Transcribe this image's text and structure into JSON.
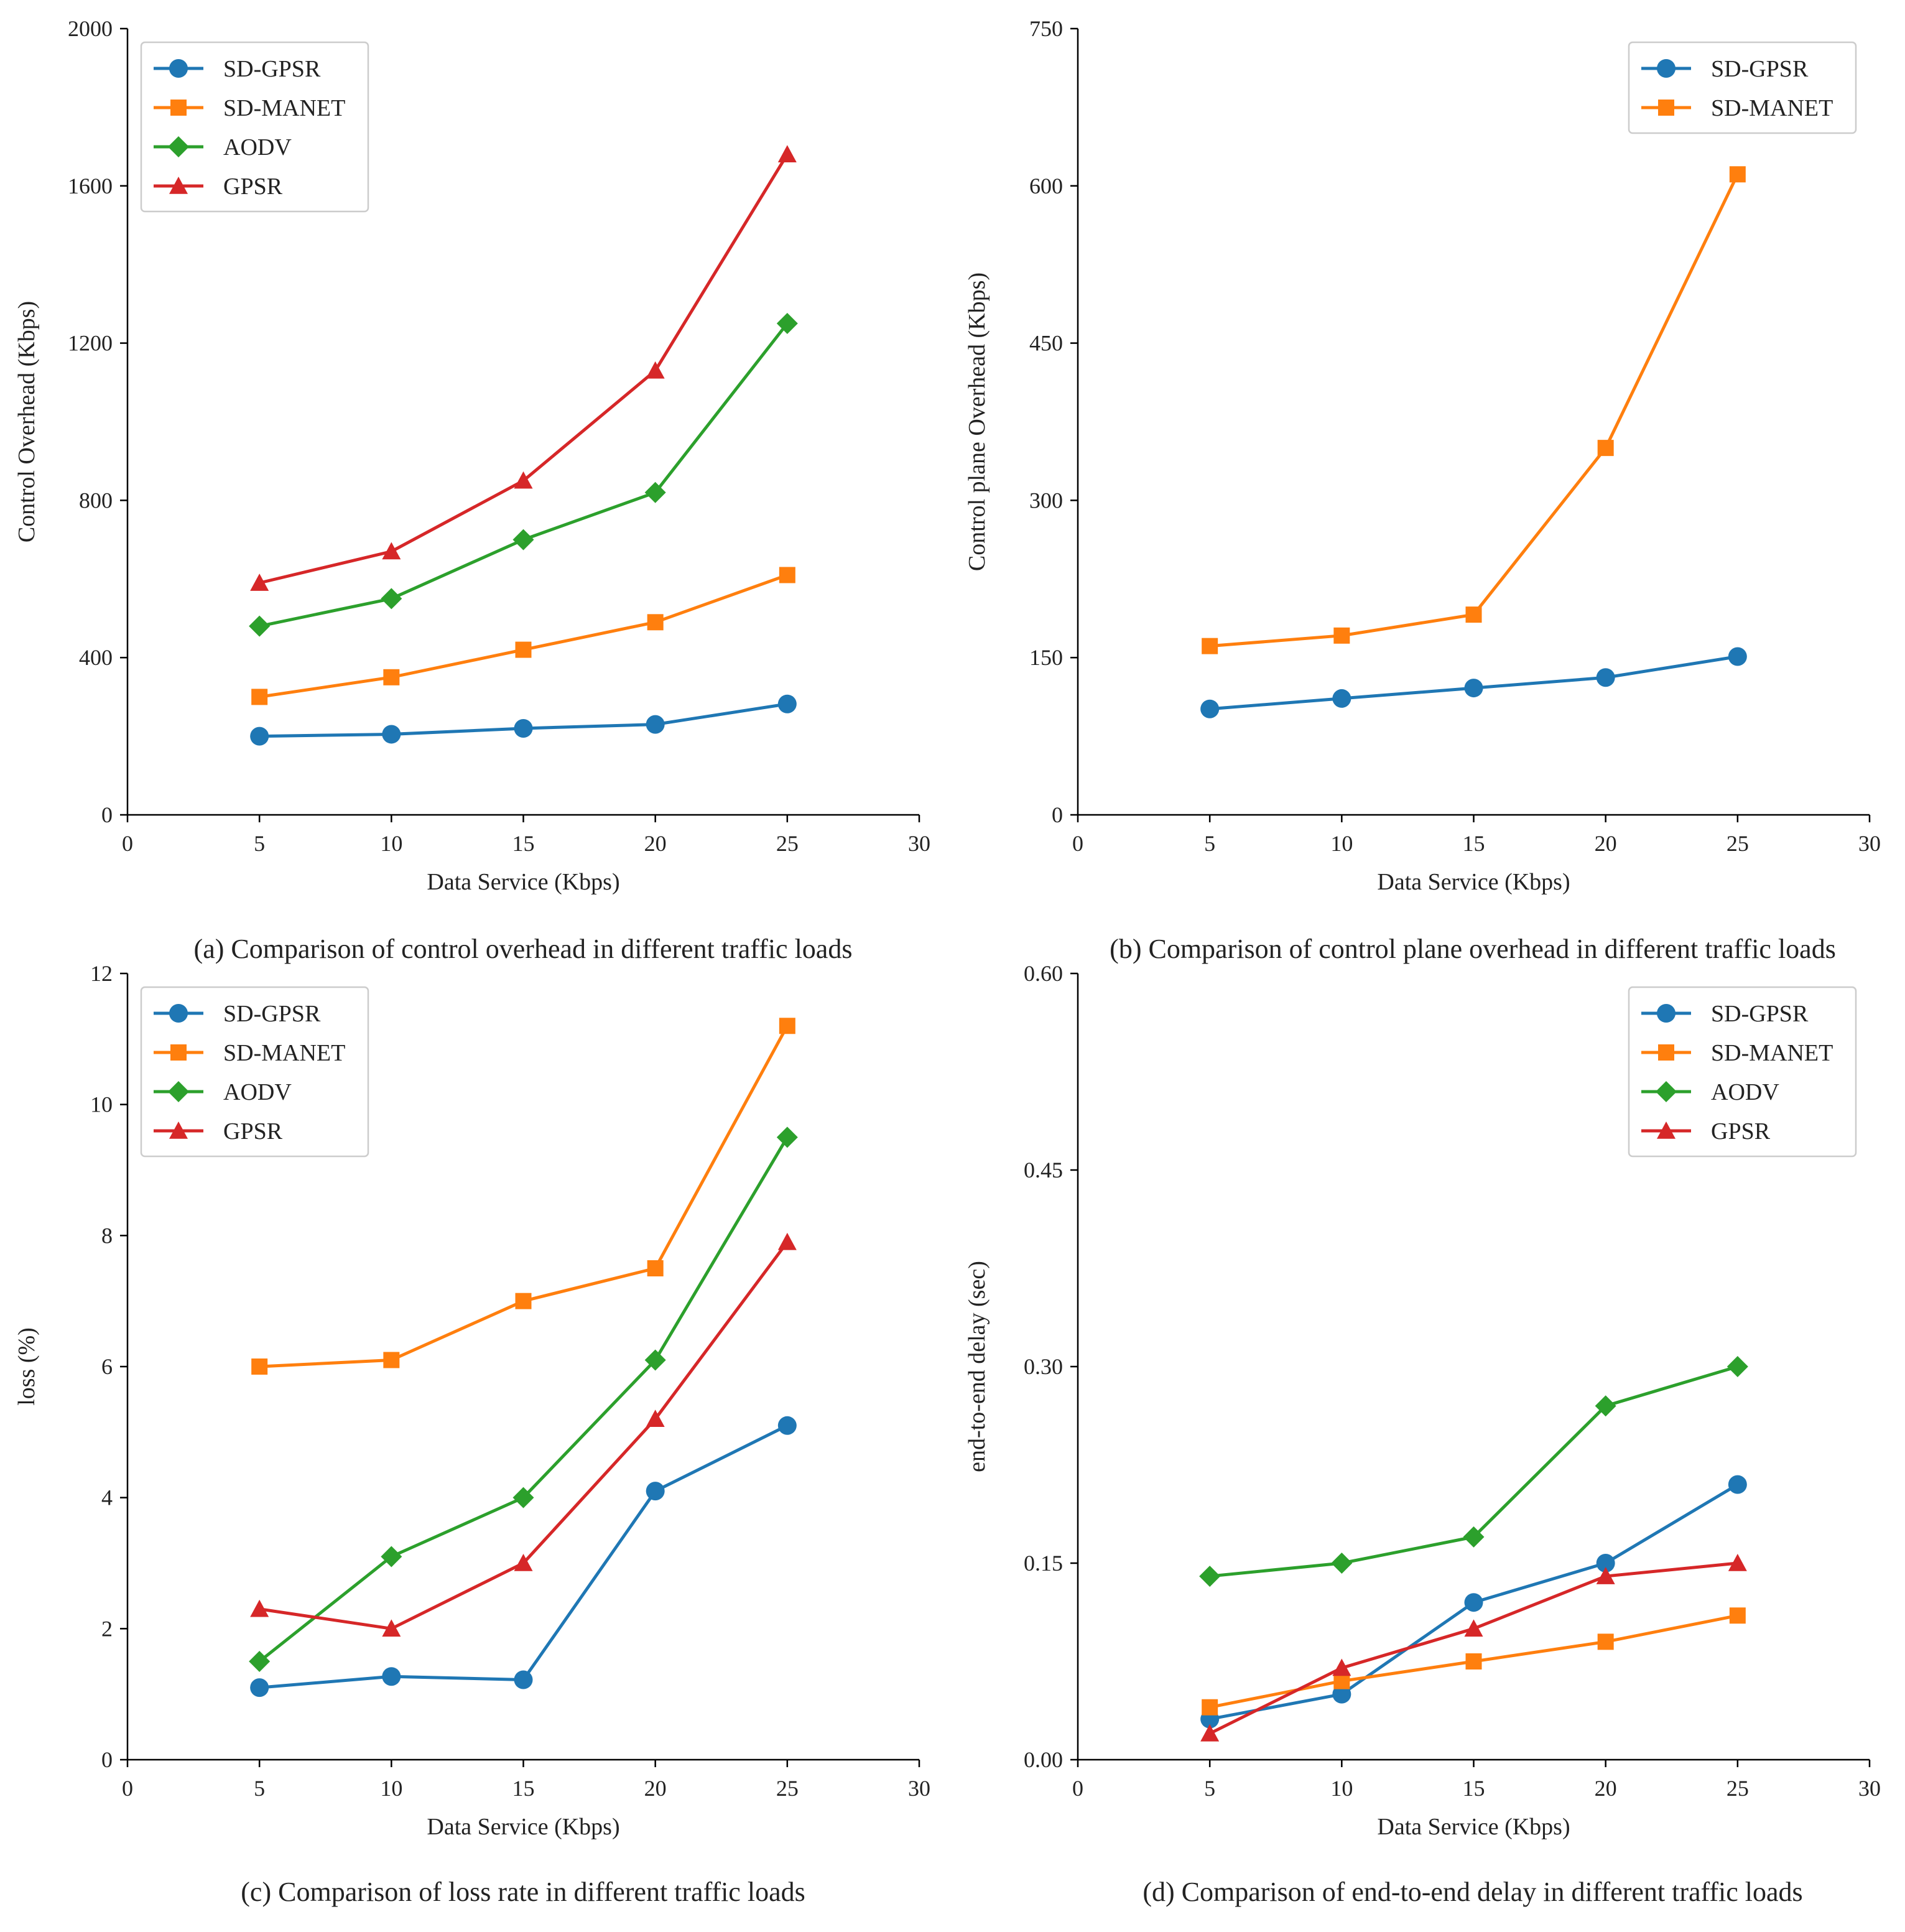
{
  "chart_data": [
    {
      "type": "line",
      "caption": "(a) Comparison of control overhead in different traffic loads",
      "xlabel": "Data Service (Kbps)",
      "ylabel": "Control Overhead (Kbps)",
      "xlim": [
        0,
        30
      ],
      "ylim": [
        0,
        2000
      ],
      "xticks": [
        0,
        5,
        10,
        15,
        20,
        25,
        30
      ],
      "xtick_labels": [
        "0",
        "5",
        "10",
        "15",
        "20",
        "25",
        "30"
      ],
      "yticks": [
        0,
        400,
        800,
        1200,
        1600,
        2000
      ],
      "ytick_labels": [
        "0",
        "400",
        "800",
        "1200",
        "1600",
        "2000"
      ],
      "grid": false,
      "legend": "top-left",
      "x": [
        5,
        10,
        15,
        20,
        25
      ],
      "series": [
        {
          "name": "SD-GPSR",
          "color": "#1f77b4",
          "marker": "circle",
          "values": [
            200,
            205,
            220,
            230,
            282
          ]
        },
        {
          "name": "SD-MANET",
          "color": "#ff7f0e",
          "marker": "square",
          "values": [
            300,
            350,
            420,
            490,
            610
          ]
        },
        {
          "name": "AODV",
          "color": "#2ca02c",
          "marker": "diamond",
          "values": [
            480,
            550,
            700,
            820,
            1250
          ]
        },
        {
          "name": "GPSR",
          "color": "#d62728",
          "marker": "triangle",
          "values": [
            590,
            670,
            850,
            1130,
            1680
          ]
        }
      ]
    },
    {
      "type": "line",
      "caption": "(b) Comparison of control plane overhead in different traffic loads",
      "xlabel": "Data Service (Kbps)",
      "ylabel": "Control plane Overhead (Kbps)",
      "xlim": [
        0,
        30
      ],
      "ylim": [
        0,
        750
      ],
      "xticks": [
        0,
        5,
        10,
        15,
        20,
        25,
        30
      ],
      "xtick_labels": [
        "0",
        "5",
        "10",
        "15",
        "20",
        "25",
        "30"
      ],
      "yticks": [
        0,
        150,
        300,
        450,
        600,
        750
      ],
      "ytick_labels": [
        "0",
        "150",
        "300",
        "450",
        "600",
        "750"
      ],
      "grid": false,
      "legend": "top-right",
      "x": [
        5,
        10,
        15,
        20,
        25
      ],
      "series": [
        {
          "name": "SD-GPSR",
          "color": "#1f77b4",
          "marker": "circle",
          "values": [
            101,
            111,
            121,
            131,
            151
          ]
        },
        {
          "name": "SD-MANET",
          "color": "#ff7f0e",
          "marker": "square",
          "values": [
            161,
            171,
            191,
            350,
            611
          ]
        }
      ]
    },
    {
      "type": "line",
      "caption": "(c) Comparison of loss rate in different traffic loads",
      "xlabel": "Data Service (Kbps)",
      "ylabel": "loss (%)",
      "xlim": [
        0,
        30
      ],
      "ylim": [
        0,
        12
      ],
      "xticks": [
        0,
        5,
        10,
        15,
        20,
        25,
        30
      ],
      "xtick_labels": [
        "0",
        "5",
        "10",
        "15",
        "20",
        "25",
        "30"
      ],
      "yticks": [
        0,
        2,
        4,
        6,
        8,
        10,
        12
      ],
      "ytick_labels": [
        "0",
        "2",
        "4",
        "6",
        "8",
        "10",
        "12"
      ],
      "grid": false,
      "legend": "top-left",
      "x": [
        5,
        10,
        15,
        20,
        25
      ],
      "series": [
        {
          "name": "SD-GPSR",
          "color": "#1f77b4",
          "marker": "circle",
          "values": [
            1.1,
            1.27,
            1.22,
            4.1,
            5.1
          ]
        },
        {
          "name": "SD-MANET",
          "color": "#ff7f0e",
          "marker": "square",
          "values": [
            6.0,
            6.1,
            7.0,
            7.5,
            11.2
          ]
        },
        {
          "name": "AODV",
          "color": "#2ca02c",
          "marker": "diamond",
          "values": [
            1.5,
            3.1,
            4.0,
            6.1,
            9.5
          ]
        },
        {
          "name": "GPSR",
          "color": "#d62728",
          "marker": "triangle",
          "values": [
            2.3,
            2.0,
            3.0,
            5.2,
            7.9
          ]
        }
      ]
    },
    {
      "type": "line",
      "caption": "(d) Comparison of end-to-end delay in different traffic loads",
      "xlabel": "Data Service (Kbps)",
      "ylabel": "end-to-end delay (sec)",
      "xlim": [
        0,
        30
      ],
      "ylim": [
        0,
        0.6
      ],
      "xticks": [
        0,
        5,
        10,
        15,
        20,
        25,
        30
      ],
      "xtick_labels": [
        "0",
        "5",
        "10",
        "15",
        "20",
        "25",
        "30"
      ],
      "yticks": [
        0,
        0.15,
        0.3,
        0.45,
        0.6
      ],
      "ytick_labels": [
        "0.00",
        "0.15",
        "0.30",
        "0.45",
        "0.60"
      ],
      "grid": false,
      "legend": "top-right",
      "x": [
        5,
        10,
        15,
        20,
        25
      ],
      "series": [
        {
          "name": "SD-GPSR",
          "color": "#1f77b4",
          "marker": "circle",
          "values": [
            0.031,
            0.05,
            0.12,
            0.15,
            0.21
          ]
        },
        {
          "name": "SD-MANET",
          "color": "#ff7f0e",
          "marker": "square",
          "values": [
            0.04,
            0.06,
            0.075,
            0.09,
            0.11
          ]
        },
        {
          "name": "AODV",
          "color": "#2ca02c",
          "marker": "diamond",
          "values": [
            0.14,
            0.15,
            0.17,
            0.27,
            0.3
          ]
        },
        {
          "name": "GPSR",
          "color": "#d62728",
          "marker": "triangle",
          "values": [
            0.02,
            0.07,
            0.1,
            0.14,
            0.15
          ]
        }
      ]
    }
  ]
}
